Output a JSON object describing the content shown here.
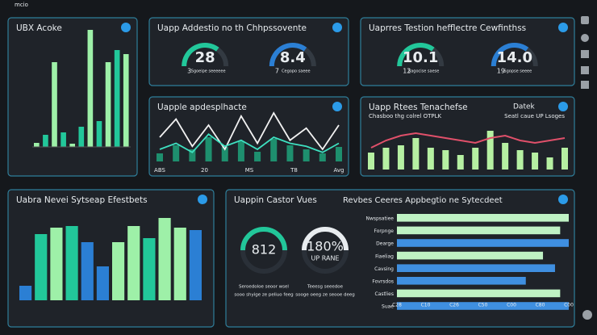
{
  "topbar": {
    "label": "mcio"
  },
  "panel_bars": {
    "title": "UBX Acoke",
    "values": [
      5,
      15,
      105,
      18,
      4,
      25,
      145,
      32,
      105,
      120,
      115
    ],
    "colors": [
      "#9ef0a8",
      "#22c79a"
    ]
  },
  "panel_gauges_a": {
    "title": "Uapp Addestio no th Chhpssovente",
    "gauges": [
      {
        "value": "28",
        "lead": "3",
        "caption": "Sgoeipe seeeeee"
      },
      {
        "value": "8.4",
        "lead": "7",
        "caption": "Cegopo saeee"
      }
    ]
  },
  "panel_gauges_b": {
    "title": "Uaprres Testion hefflectre Cewfinthss",
    "gauges": [
      {
        "value": "10.1",
        "lead": "12",
        "caption": "Sagocise saese"
      },
      {
        "value": "14.0",
        "lead": "19",
        "caption": "Sgopse seeee"
      }
    ]
  },
  "panel_line": {
    "title": "Uapple apdesplhacte",
    "x_labels": [
      "ABS",
      "20",
      "MS",
      "T8",
      "Avg"
    ],
    "series": [
      {
        "color": "#f2f2f2",
        "values": [
          40,
          70,
          25,
          60,
          20,
          75,
          30,
          80,
          35,
          55,
          20,
          60
        ]
      },
      {
        "color": "#3ee0c0",
        "values": [
          20,
          30,
          15,
          45,
          25,
          35,
          20,
          40,
          30,
          25,
          15,
          30
        ]
      }
    ],
    "bars": [
      10,
      20,
      15,
      30,
      18,
      25,
      12,
      28,
      20,
      15,
      10,
      18
    ]
  },
  "panel_combo": {
    "title": "Uapp Rtees Tenachefse",
    "badge": "Datek",
    "subtitle": "Chasboo thg colrel OTPLK",
    "note": "Seatl caue UP Lsoges",
    "bars": [
      35,
      45,
      50,
      65,
      45,
      40,
      30,
      45,
      80,
      55,
      40,
      35,
      25,
      45
    ],
    "line": [
      45,
      60,
      70,
      75,
      70,
      65,
      60,
      55,
      65,
      70,
      60,
      55,
      60,
      65
    ]
  },
  "panel_columns": {
    "title": "Uabra Nevei Sytseap Efestbets",
    "values": [
      18,
      82,
      90,
      92,
      72,
      42,
      72,
      92,
      77,
      102,
      90,
      87
    ],
    "colors": [
      "#2b7fd4",
      "#22c79a",
      "#9ef0a8",
      "#22c79a",
      "#2b7fd4",
      "#2b7fd4",
      "#9ef0a8",
      "#9ef0a8",
      "#22c79a",
      "#9ef0a8",
      "#9ef0a8",
      "#2b7fd4"
    ]
  },
  "panel_rows": {
    "title": "Uappin Castor Vues",
    "subtitle": "Revbes Ceeres Appbegtio ne Sytecdeet",
    "donuts": [
      {
        "value": "812",
        "sub": "",
        "captions": [
          "Seroedoloe seoor wsel",
          "sooo shyige ze peliuo feeg"
        ]
      },
      {
        "value": "180%",
        "sub": "UP RANE",
        "captions": [
          "Teeesg seeedoe",
          "sooge oeeg ze seooe deeg"
        ]
      }
    ],
    "rows": [
      {
        "label": "Nwspsatiee",
        "value": 100,
        "color": "#bff2c4"
      },
      {
        "label": "Forpnge",
        "value": 95,
        "color": "#bff2c4"
      },
      {
        "label": "Dearge",
        "value": 100,
        "color": "#3f8fe0"
      },
      {
        "label": "Fiaeliag",
        "value": 85,
        "color": "#bff2c4"
      },
      {
        "label": "Cavsing",
        "value": 92,
        "color": "#3f8fe0"
      },
      {
        "label": "Fovrsdos",
        "value": 75,
        "color": "#3f8fe0"
      },
      {
        "label": "Castlies",
        "value": 95,
        "color": "#bff2c4"
      },
      {
        "label": "Suae",
        "value": 100,
        "color": "#3f8fe0"
      }
    ],
    "x_labels": [
      "C28",
      "C10",
      "C26",
      "C50",
      "C00",
      "C80",
      "C00"
    ]
  }
}
